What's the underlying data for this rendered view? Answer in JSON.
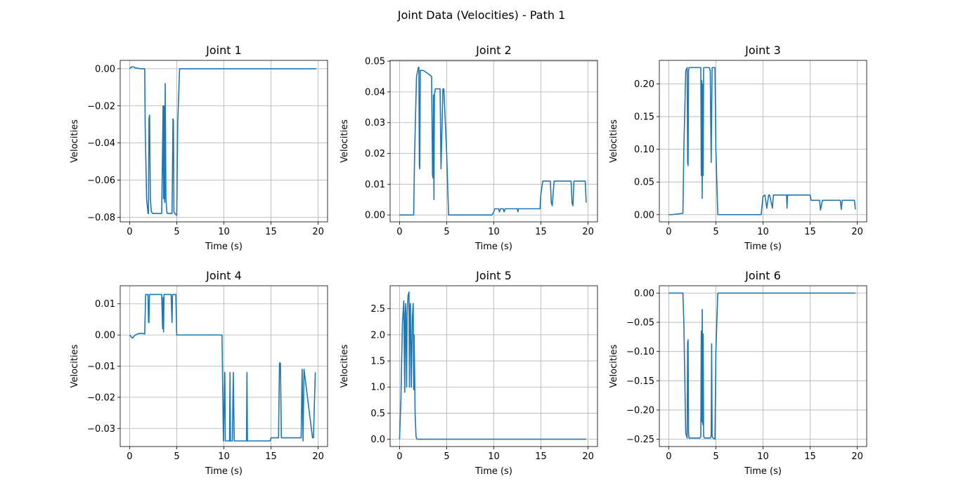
{
  "figure_title": "Joint Data (Velocities) - Path 1",
  "chart_data": [
    {
      "type": "line",
      "title": "Joint 1",
      "xlabel": "Time (s)",
      "ylabel": "Velocities",
      "xlim": [
        -1,
        21
      ],
      "ylim": [
        -0.0825,
        0.0045
      ],
      "xticks": [
        0,
        5,
        10,
        15,
        20
      ],
      "xtick_labels": [
        "0",
        "5",
        "10",
        "15",
        "20"
      ],
      "yticks": [
        0,
        -0.02,
        -0.04,
        -0.06,
        -0.08
      ],
      "ytick_labels": [
        "0.00",
        "−0.02",
        "−0.04",
        "−0.06",
        "−0.08"
      ],
      "grid": true,
      "color": "#1f77b4",
      "series": [
        {
          "x": [
            0,
            0.2,
            0.4,
            0.6,
            0.8,
            1.2,
            1.6,
            1.65,
            1.8,
            1.95,
            2.0,
            2.05,
            2.12,
            2.2,
            2.3,
            2.45,
            3.0,
            3.4,
            3.5,
            3.55,
            3.6,
            3.65,
            3.72,
            3.78,
            3.85,
            3.95,
            4.0,
            4.05,
            4.1,
            4.5,
            4.6,
            4.65,
            4.7,
            4.8,
            5.0,
            5.1,
            5.3,
            6,
            8,
            10,
            12,
            14,
            16,
            18,
            19.8
          ],
          "y": [
            0,
            0.001,
            0.001,
            0.0005,
            0.0003,
            0,
            0,
            -0.03,
            -0.07,
            -0.078,
            -0.078,
            -0.027,
            -0.025,
            -0.07,
            -0.077,
            -0.078,
            -0.078,
            -0.078,
            -0.04,
            -0.02,
            -0.07,
            -0.02,
            -0.072,
            -0.008,
            -0.07,
            -0.077,
            -0.078,
            -0.078,
            -0.078,
            -0.078,
            -0.027,
            -0.028,
            -0.077,
            -0.078,
            -0.079,
            -0.03,
            0,
            0,
            0,
            0,
            0,
            0,
            0,
            0,
            0
          ]
        }
      ]
    },
    {
      "type": "line",
      "title": "Joint 2",
      "xlabel": "Time (s)",
      "ylabel": "Velocities",
      "xlim": [
        -1,
        21
      ],
      "ylim": [
        -0.00225,
        0.05025
      ],
      "xticks": [
        0,
        5,
        10,
        15,
        20
      ],
      "xtick_labels": [
        "0",
        "5",
        "10",
        "15",
        "20"
      ],
      "yticks": [
        0,
        0.01,
        0.02,
        0.03,
        0.04,
        0.05
      ],
      "ytick_labels": [
        "0.00",
        "0.01",
        "0.02",
        "0.03",
        "0.04",
        "0.05"
      ],
      "grid": true,
      "color": "#1f77b4",
      "series": [
        {
          "x": [
            0,
            1.5,
            1.6,
            1.8,
            2.0,
            2.05,
            2.1,
            2.15,
            2.2,
            2.3,
            2.5,
            3.0,
            3.4,
            3.5,
            3.55,
            3.6,
            3.65,
            3.7,
            3.8,
            4.2,
            4.3,
            4.4,
            4.6,
            4.65,
            4.7,
            5.0,
            5.2,
            6,
            8,
            9.8,
            10.0,
            10.1,
            10.5,
            10.6,
            10.7,
            11.0,
            11.1,
            11.2,
            12.5,
            12.55,
            12.6,
            14.9,
            15.0,
            15.2,
            16.0,
            16.1,
            16.2,
            16.4,
            16.6,
            18.2,
            18.3,
            18.4,
            18.5,
            19.6,
            19.7,
            19.8
          ],
          "y": [
            0,
            0,
            0.02,
            0.045,
            0.048,
            0.048,
            0.016,
            0.015,
            0.047,
            0.047,
            0.047,
            0.046,
            0.045,
            0.013,
            0.012,
            0.039,
            0.005,
            0.039,
            0.041,
            0.041,
            0.041,
            0.015,
            0.041,
            0.041,
            0.041,
            0.02,
            0,
            0,
            0,
            0,
            0.001,
            0.002,
            0.002,
            0.001,
            0.002,
            0.002,
            0.001,
            0.002,
            0.002,
            0.001,
            0.002,
            0.002,
            0.007,
            0.011,
            0.011,
            0.004,
            0.003,
            0.011,
            0.011,
            0.011,
            0.004,
            0.003,
            0.011,
            0.011,
            0.011,
            0.004
          ]
        }
      ]
    },
    {
      "type": "line",
      "title": "Joint 3",
      "xlabel": "Time (s)",
      "ylabel": "Velocities",
      "xlim": [
        -1,
        21
      ],
      "ylim": [
        -0.011,
        0.236
      ],
      "xticks": [
        0,
        5,
        10,
        15,
        20
      ],
      "xtick_labels": [
        "0",
        "5",
        "10",
        "15",
        "20"
      ],
      "yticks": [
        0,
        0.05,
        0.1,
        0.15,
        0.2
      ],
      "ytick_labels": [
        "0.00",
        "0.05",
        "0.10",
        "0.15",
        "0.20"
      ],
      "grid": true,
      "color": "#1f77b4",
      "series": [
        {
          "x": [
            0,
            0.3,
            1.5,
            1.6,
            1.8,
            1.95,
            2.0,
            2.05,
            2.1,
            2.15,
            2.2,
            2.5,
            3.3,
            3.4,
            3.45,
            3.5,
            3.55,
            3.6,
            3.65,
            3.7,
            3.8,
            4.3,
            4.4,
            4.5,
            4.6,
            4.7,
            4.9,
            5.0,
            5.2,
            6,
            8,
            9.8,
            10.0,
            10.2,
            10.4,
            10.6,
            10.7,
            11.0,
            11.1,
            11.2,
            12.5,
            12.55,
            12.6,
            15.0,
            15.1,
            16.0,
            16.1,
            16.3,
            18.2,
            18.3,
            18.4,
            19.6,
            19.7,
            19.8
          ],
          "y": [
            0,
            0,
            0.002,
            0.1,
            0.22,
            0.225,
            0.08,
            0.075,
            0.22,
            0.225,
            0.225,
            0.225,
            0.225,
            0.225,
            0.06,
            0.205,
            0.025,
            0.2,
            0.06,
            0.225,
            0.225,
            0.225,
            0.22,
            0.08,
            0.225,
            0.225,
            0.225,
            0.1,
            0,
            0,
            0,
            0,
            0.028,
            0.03,
            0.01,
            0.03,
            0.03,
            0.01,
            0.03,
            0.03,
            0.03,
            0.01,
            0.03,
            0.03,
            0.022,
            0.022,
            0.007,
            0.022,
            0.022,
            0.008,
            0.022,
            0.022,
            0.022,
            0.008
          ]
        }
      ]
    },
    {
      "type": "line",
      "title": "Joint 4",
      "xlabel": "Time (s)",
      "ylabel": "Velocities",
      "xlim": [
        -1,
        21
      ],
      "ylim": [
        -0.0358,
        0.0158
      ],
      "xticks": [
        0,
        5,
        10,
        15,
        20
      ],
      "xtick_labels": [
        "0",
        "5",
        "10",
        "15",
        "20"
      ],
      "yticks": [
        0.01,
        0,
        -0.01,
        -0.02,
        -0.03
      ],
      "ytick_labels": [
        "0.01",
        "0.00",
        "−0.01",
        "−0.02",
        "−0.03"
      ],
      "grid": true,
      "color": "#1f77b4",
      "series": [
        {
          "x": [
            0,
            0.3,
            0.6,
            1.0,
            1.4,
            1.6,
            1.7,
            1.8,
            1.95,
            2.0,
            2.05,
            2.1,
            2.15,
            2.3,
            3.3,
            3.4,
            3.5,
            3.55,
            3.6,
            3.65,
            3.7,
            4.4,
            4.5,
            4.55,
            4.6,
            4.7,
            4.9,
            5.0,
            6,
            8,
            9.8,
            9.95,
            10.1,
            10.15,
            10.2,
            10.3,
            10.6,
            10.65,
            10.7,
            10.9,
            11.0,
            11.1,
            12.4,
            12.45,
            12.5,
            14.9,
            15.0,
            15.8,
            15.9,
            16.0,
            16.1,
            16.2,
            17.5,
            18.2,
            18.3,
            18.4,
            18.5,
            19.4,
            19.5,
            19.7
          ],
          "y": [
            0,
            -0.001,
            0,
            0.0005,
            0.0005,
            0.0003,
            0.013,
            0.013,
            0.013,
            0.004,
            0.004,
            0.013,
            0.013,
            0.013,
            0.013,
            0.013,
            0.002,
            0.012,
            0.001,
            0.013,
            0.013,
            0.013,
            0.004,
            0.013,
            0.013,
            0.013,
            0.013,
            0,
            0,
            0,
            0,
            -0.034,
            -0.012,
            -0.034,
            -0.034,
            -0.034,
            -0.034,
            -0.012,
            -0.034,
            -0.034,
            -0.012,
            -0.034,
            -0.034,
            -0.012,
            -0.034,
            -0.034,
            -0.033,
            -0.033,
            -0.009,
            -0.009,
            -0.033,
            -0.033,
            -0.033,
            -0.033,
            -0.011,
            -0.034,
            -0.011,
            -0.033,
            -0.033,
            -0.012
          ]
        }
      ]
    },
    {
      "type": "line",
      "title": "Joint 5",
      "xlabel": "Time (s)",
      "ylabel": "Velocities",
      "xlim": [
        -1,
        21
      ],
      "ylim": [
        -0.14,
        2.94
      ],
      "xticks": [
        0,
        5,
        10,
        15,
        20
      ],
      "xtick_labels": [
        "0",
        "5",
        "10",
        "15",
        "20"
      ],
      "yticks": [
        0,
        0.5,
        1.0,
        1.5,
        2.0,
        2.5
      ],
      "ytick_labels": [
        "0.0",
        "0.5",
        "1.0",
        "1.5",
        "2.0",
        "2.5"
      ],
      "grid": true,
      "color": "#1f77b4",
      "series": [
        {
          "x": [
            0,
            0.15,
            0.3,
            0.45,
            0.55,
            0.6,
            0.65,
            0.75,
            0.8,
            0.9,
            1.0,
            1.05,
            1.1,
            1.15,
            1.25,
            1.35,
            1.45,
            1.5,
            1.55,
            1.65,
            1.75,
            1.85,
            2.0,
            3,
            5,
            10,
            15,
            19.8
          ],
          "y": [
            0,
            0.8,
            2.2,
            2.65,
            0.9,
            2.4,
            2.6,
            1.0,
            2.4,
            2.75,
            2.82,
            1.0,
            2.5,
            2.6,
            1.0,
            2.3,
            2.6,
            0.95,
            2.0,
            0.5,
            0.05,
            0,
            0,
            0,
            0,
            0,
            0,
            0
          ]
        }
      ]
    },
    {
      "type": "line",
      "title": "Joint 6",
      "xlabel": "Time (s)",
      "ylabel": "Velocities",
      "xlim": [
        -1,
        21
      ],
      "ylim": [
        -0.2625,
        0.0125
      ],
      "xticks": [
        0,
        5,
        10,
        15,
        20
      ],
      "xtick_labels": [
        "0",
        "5",
        "10",
        "15",
        "20"
      ],
      "yticks": [
        0,
        -0.05,
        -0.1,
        -0.15,
        -0.2,
        -0.25
      ],
      "ytick_labels": [
        "0.00",
        "−0.05",
        "−0.10",
        "−0.15",
        "−0.20",
        "−0.25"
      ],
      "grid": true,
      "color": "#1f77b4",
      "series": [
        {
          "x": [
            0,
            1.5,
            1.6,
            1.8,
            1.95,
            2.0,
            2.05,
            2.1,
            2.15,
            2.2,
            2.5,
            3.3,
            3.4,
            3.45,
            3.5,
            3.55,
            3.6,
            3.65,
            3.7,
            3.8,
            4.4,
            4.5,
            4.55,
            4.6,
            4.7,
            4.9,
            5.0,
            5.2,
            6,
            8,
            10,
            12,
            15,
            18,
            19.8
          ],
          "y": [
            0,
            0,
            -0.05,
            -0.24,
            -0.248,
            -0.085,
            -0.08,
            -0.24,
            -0.248,
            -0.248,
            -0.248,
            -0.248,
            -0.245,
            -0.065,
            -0.22,
            -0.028,
            -0.225,
            -0.07,
            -0.245,
            -0.248,
            -0.248,
            -0.245,
            -0.087,
            -0.245,
            -0.248,
            -0.25,
            -0.1,
            0,
            0,
            0,
            0,
            0,
            0,
            0,
            0
          ]
        }
      ]
    }
  ]
}
